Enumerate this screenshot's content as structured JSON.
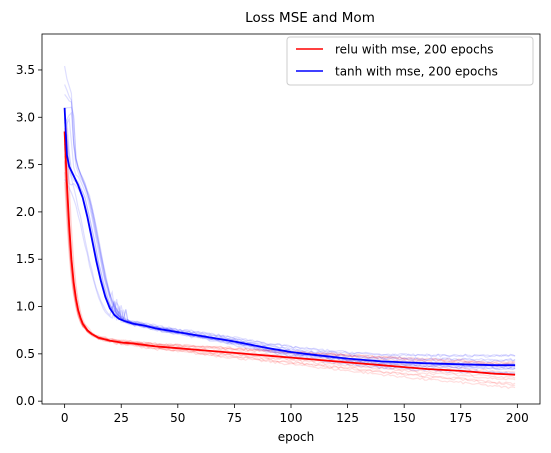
{
  "chart_data": {
    "type": "line",
    "title": "Loss MSE and Mom",
    "xlabel": "epoch",
    "ylabel": "",
    "xlim": [
      -10,
      210
    ],
    "ylim": [
      -0.03,
      3.88
    ],
    "xticks": [
      0,
      25,
      50,
      75,
      100,
      125,
      150,
      175,
      200
    ],
    "yticks": [
      0.0,
      0.5,
      1.0,
      1.5,
      2.0,
      2.5,
      3.0,
      3.5
    ],
    "ytick_labels": [
      "0.0",
      "0.5",
      "1.0",
      "1.5",
      "2.0",
      "2.5",
      "3.0",
      "3.5"
    ],
    "grid": false,
    "legend_position": "top-right",
    "series": [
      {
        "name": "relu with mse, 200 epochs",
        "color": "#ff0000",
        "x": [
          0,
          1,
          2,
          3,
          4,
          5,
          6,
          7,
          8,
          10,
          12,
          15,
          20,
          25,
          30,
          40,
          50,
          60,
          75,
          90,
          100,
          110,
          125,
          140,
          150,
          160,
          175,
          190,
          199
        ],
        "y": [
          2.85,
          2.3,
          1.85,
          1.5,
          1.25,
          1.08,
          0.96,
          0.88,
          0.82,
          0.75,
          0.71,
          0.67,
          0.64,
          0.62,
          0.61,
          0.58,
          0.56,
          0.54,
          0.51,
          0.48,
          0.46,
          0.44,
          0.41,
          0.38,
          0.36,
          0.34,
          0.32,
          0.29,
          0.28
        ]
      },
      {
        "name": "tanh with mse, 200 epochs",
        "color": "#0000ff",
        "x": [
          0,
          1,
          2,
          4,
          6,
          8,
          10,
          12,
          14,
          16,
          18,
          20,
          22,
          24,
          26,
          30,
          35,
          40,
          50,
          60,
          75,
          90,
          100,
          110,
          125,
          140,
          150,
          160,
          175,
          190,
          199
        ],
        "y": [
          3.1,
          2.6,
          2.48,
          2.38,
          2.28,
          2.15,
          1.95,
          1.72,
          1.48,
          1.27,
          1.1,
          0.98,
          0.91,
          0.87,
          0.85,
          0.82,
          0.8,
          0.77,
          0.73,
          0.69,
          0.63,
          0.56,
          0.52,
          0.49,
          0.45,
          0.42,
          0.41,
          0.4,
          0.39,
          0.38,
          0.38
        ]
      }
    ],
    "faint_runs_note": ""
  }
}
